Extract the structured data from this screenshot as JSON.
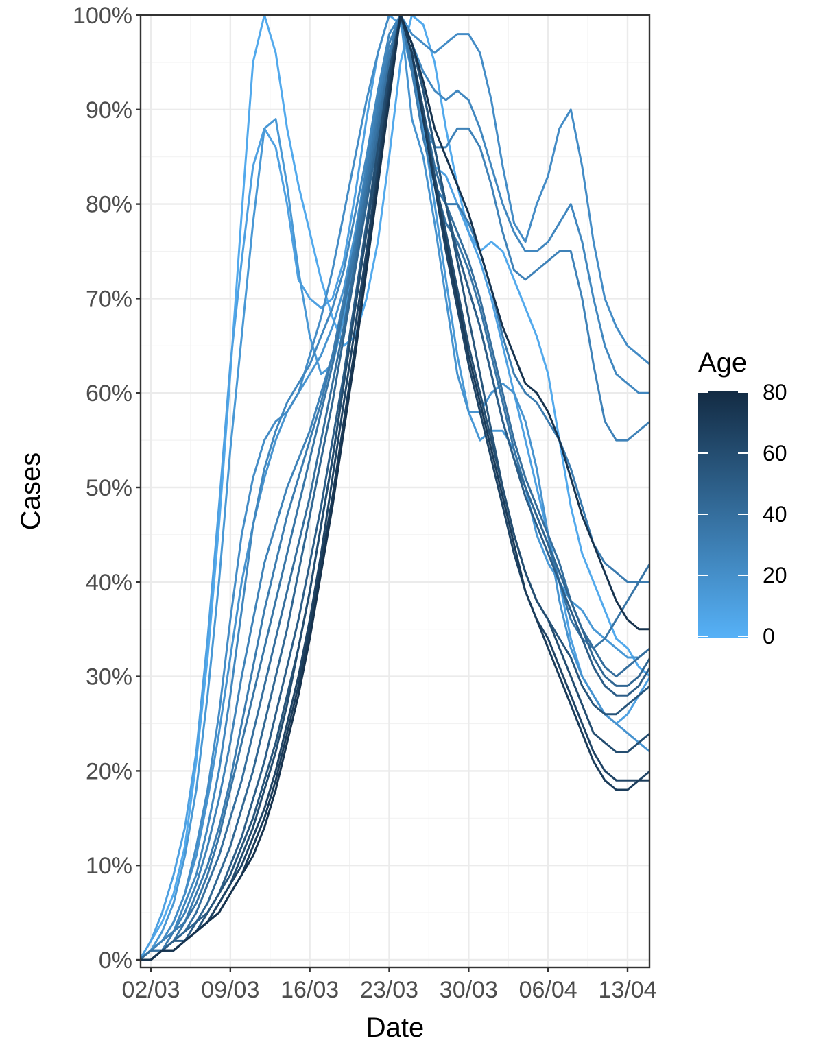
{
  "chart_data": {
    "type": "line",
    "xlabel": "Date",
    "ylabel": "Cases",
    "x_tick_labels": [
      "02/03",
      "09/03",
      "16/03",
      "23/03",
      "30/03",
      "06/04",
      "13/04"
    ],
    "x_tick_days": [
      1,
      8,
      15,
      22,
      29,
      36,
      43
    ],
    "y_tick_labels": [
      "0%",
      "10%",
      "20%",
      "30%",
      "40%",
      "50%",
      "60%",
      "70%",
      "80%",
      "90%",
      "100%"
    ],
    "ylim": [
      0,
      100
    ],
    "y_unit": "percent of peak",
    "grid": true,
    "legend": {
      "title": "Age",
      "position": "right",
      "type": "colorbar",
      "range": [
        0,
        80
      ],
      "ticks": [
        "0",
        "20",
        "40",
        "60",
        "80"
      ],
      "color_low": "#56b1f7",
      "color_high": "#132b43"
    },
    "x_days": [
      0,
      1,
      2,
      3,
      4,
      5,
      6,
      7,
      8,
      9,
      10,
      11,
      12,
      13,
      14,
      15,
      16,
      17,
      18,
      19,
      20,
      21,
      22,
      23,
      24,
      25,
      26,
      27,
      28,
      29,
      30,
      31,
      32,
      33,
      34,
      35,
      36,
      37,
      38,
      39,
      40,
      41,
      42,
      43,
      44,
      45
    ],
    "series": [
      {
        "age": 5,
        "values": [
          0,
          2,
          4,
          7,
          12,
          21,
          32,
          46,
          62,
          79,
          95,
          100,
          96,
          88,
          82,
          77,
          72,
          68,
          65,
          66,
          70,
          76,
          85,
          95,
          100,
          99,
          95,
          88,
          82,
          77,
          75,
          76,
          75,
          72,
          69,
          66,
          62,
          55,
          48,
          43,
          40,
          37,
          34,
          33,
          31,
          30
        ]
      },
      {
        "age": 10,
        "values": [
          0,
          2,
          5,
          9,
          14,
          22,
          34,
          48,
          63,
          74,
          84,
          88,
          86,
          80,
          72,
          70,
          69,
          70,
          74,
          81,
          89,
          96,
          100,
          99,
          94,
          88,
          84,
          83,
          80,
          77,
          74,
          70,
          65,
          60,
          55,
          50,
          45,
          40,
          34,
          30,
          28,
          26,
          25,
          26,
          28,
          30
        ]
      },
      {
        "age": 15,
        "values": [
          0,
          1,
          3,
          6,
          11,
          18,
          28,
          40,
          54,
          66,
          78,
          88,
          89,
          82,
          73,
          66,
          62,
          63,
          68,
          75,
          83,
          90,
          96,
          100,
          96,
          88,
          80,
          72,
          64,
          58,
          55,
          56,
          56,
          54,
          50,
          45,
          42,
          40,
          38,
          37,
          35,
          34,
          33,
          32,
          32,
          33
        ]
      },
      {
        "age": 18,
        "values": [
          0,
          1,
          2,
          4,
          7,
          11,
          17,
          24,
          32,
          40,
          46,
          51,
          55,
          58,
          60,
          62,
          64,
          67,
          71,
          77,
          84,
          91,
          97,
          100,
          89,
          85,
          78,
          70,
          62,
          58,
          58,
          60,
          61,
          60,
          57,
          52,
          45,
          38,
          33,
          30,
          28,
          26,
          25,
          24,
          23,
          22
        ]
      },
      {
        "age": 22,
        "values": [
          0,
          1,
          2,
          4,
          7,
          12,
          18,
          26,
          36,
          45,
          51,
          55,
          57,
          58,
          60,
          64,
          68,
          73,
          79,
          85,
          91,
          96,
          100,
          100,
          98,
          97,
          96,
          97,
          98,
          98,
          96,
          91,
          84,
          78,
          76,
          80,
          83,
          88,
          90,
          84,
          76,
          70,
          67,
          65,
          64,
          63
        ]
      },
      {
        "age": 25,
        "values": [
          0,
          1,
          2,
          3,
          6,
          9,
          14,
          20,
          28,
          37,
          46,
          52,
          56,
          59,
          61,
          63,
          66,
          69,
          73,
          79,
          85,
          92,
          98,
          100,
          97,
          94,
          92,
          91,
          92,
          91,
          88,
          84,
          80,
          77,
          75,
          75,
          76,
          78,
          80,
          76,
          70,
          65,
          62,
          61,
          60,
          60
        ]
      },
      {
        "age": 28,
        "values": [
          0,
          1,
          2,
          3,
          5,
          8,
          12,
          17,
          23,
          30,
          36,
          42,
          46,
          50,
          53,
          56,
          60,
          64,
          69,
          76,
          84,
          91,
          97,
          100,
          95,
          89,
          86,
          86,
          88,
          88,
          86,
          82,
          77,
          73,
          72,
          73,
          74,
          75,
          75,
          70,
          63,
          57,
          55,
          55,
          56,
          57
        ]
      },
      {
        "age": 32,
        "values": [
          0,
          1,
          1,
          3,
          4,
          7,
          10,
          14,
          19,
          25,
          31,
          37,
          42,
          47,
          51,
          55,
          59,
          64,
          70,
          76,
          83,
          90,
          96,
          100,
          94,
          87,
          82,
          80,
          80,
          78,
          75,
          71,
          66,
          62,
          60,
          59,
          57,
          55,
          52,
          48,
          44,
          42,
          41,
          40,
          40,
          40
        ]
      },
      {
        "age": 36,
        "values": [
          0,
          1,
          1,
          2,
          4,
          6,
          9,
          13,
          18,
          23,
          28,
          33,
          38,
          43,
          48,
          53,
          58,
          63,
          69,
          75,
          82,
          89,
          95,
          100,
          95,
          89,
          82,
          78,
          76,
          73,
          69,
          64,
          59,
          54,
          50,
          47,
          44,
          40,
          36,
          34,
          33,
          34,
          36,
          38,
          40,
          42
        ]
      },
      {
        "age": 40,
        "values": [
          0,
          1,
          1,
          2,
          3,
          5,
          8,
          11,
          15,
          19,
          24,
          29,
          34,
          39,
          44,
          49,
          55,
          61,
          67,
          74,
          81,
          88,
          95,
          100,
          96,
          90,
          84,
          80,
          77,
          74,
          70,
          65,
          60,
          55,
          51,
          48,
          45,
          42,
          38,
          35,
          33,
          31,
          30,
          31,
          32,
          33
        ]
      },
      {
        "age": 45,
        "values": [
          0,
          0,
          1,
          2,
          3,
          4,
          6,
          9,
          12,
          16,
          20,
          25,
          30,
          35,
          41,
          47,
          53,
          59,
          66,
          73,
          80,
          87,
          94,
          100,
          97,
          92,
          86,
          80,
          75,
          71,
          67,
          62,
          57,
          53,
          50,
          47,
          44,
          41,
          38,
          35,
          32,
          30,
          29,
          29,
          30,
          32
        ]
      },
      {
        "age": 50,
        "values": [
          0,
          0,
          1,
          2,
          2,
          4,
          5,
          7,
          10,
          13,
          17,
          21,
          26,
          31,
          36,
          42,
          48,
          55,
          62,
          70,
          78,
          86,
          94,
          100,
          97,
          92,
          86,
          80,
          75,
          71,
          67,
          62,
          57,
          53,
          49,
          46,
          43,
          40,
          37,
          34,
          31,
          29,
          28,
          28,
          29,
          31
        ]
      },
      {
        "age": 55,
        "values": [
          0,
          0,
          1,
          1,
          2,
          3,
          5,
          7,
          9,
          12,
          15,
          19,
          23,
          28,
          33,
          39,
          46,
          53,
          61,
          69,
          77,
          85,
          93,
          100,
          97,
          92,
          86,
          80,
          74,
          68,
          62,
          56,
          50,
          45,
          41,
          38,
          36,
          34,
          32,
          29,
          27,
          26,
          26,
          27,
          28,
          29
        ]
      },
      {
        "age": 60,
        "values": [
          0,
          0,
          1,
          1,
          2,
          3,
          4,
          6,
          8,
          11,
          14,
          18,
          22,
          27,
          33,
          39,
          46,
          53,
          61,
          69,
          77,
          86,
          94,
          100,
          96,
          90,
          83,
          77,
          71,
          65,
          60,
          55,
          50,
          45,
          41,
          38,
          36,
          33,
          30,
          27,
          24,
          23,
          22,
          22,
          23,
          24
        ]
      },
      {
        "age": 65,
        "values": [
          0,
          0,
          1,
          1,
          2,
          3,
          4,
          6,
          8,
          10,
          13,
          16,
          20,
          25,
          30,
          36,
          43,
          51,
          59,
          67,
          75,
          84,
          93,
          100,
          96,
          89,
          82,
          75,
          69,
          63,
          58,
          53,
          48,
          43,
          39,
          36,
          34,
          31,
          28,
          25,
          22,
          20,
          19,
          19,
          19,
          20
        ]
      },
      {
        "age": 70,
        "values": [
          0,
          0,
          1,
          1,
          2,
          3,
          4,
          5,
          7,
          9,
          12,
          15,
          19,
          24,
          29,
          35,
          42,
          49,
          57,
          65,
          74,
          83,
          92,
          100,
          96,
          89,
          82,
          76,
          70,
          64,
          59,
          54,
          49,
          44,
          39,
          36,
          33,
          30,
          27,
          24,
          21,
          19,
          18,
          18,
          19,
          19
        ]
      },
      {
        "age": 75,
        "values": [
          0,
          0,
          1,
          1,
          2,
          3,
          4,
          5,
          7,
          9,
          11,
          14,
          18,
          23,
          28,
          34,
          41,
          48,
          56,
          64,
          73,
          82,
          91,
          100,
          97,
          93,
          88,
          85,
          82,
          79,
          75,
          71,
          67,
          64,
          61,
          60,
          58,
          55,
          51,
          47,
          44,
          41,
          38,
          36,
          35,
          35
        ]
      }
    ]
  }
}
